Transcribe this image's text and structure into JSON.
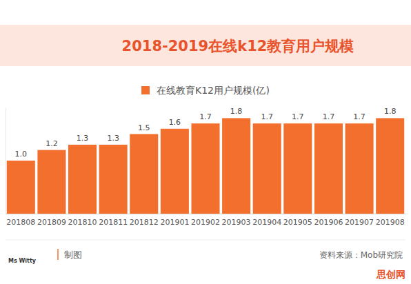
{
  "chart_data": {
    "type": "bar",
    "title": "2018-2019在线k12教育用户规模",
    "categories": [
      "201808",
      "201809",
      "201810",
      "201811",
      "201812",
      "201901",
      "201902",
      "201903",
      "201904",
      "201905",
      "201906",
      "201907",
      "201908"
    ],
    "series": [
      {
        "name": "在线教育K12用户规模(亿)",
        "color": "#f36f2d",
        "values": [
          1.0,
          1.2,
          1.3,
          1.3,
          1.5,
          1.6,
          1.7,
          1.8,
          1.7,
          1.7,
          1.7,
          1.7,
          1.8
        ],
        "value_labels": [
          "1.0",
          "1.2",
          "1.3",
          "1.3",
          "1.5",
          "1.6",
          "1.7",
          "1.8",
          "1.7",
          "1.7",
          "1.7",
          "1.7",
          "1.8"
        ]
      }
    ],
    "ylim": [
      0,
      2
    ],
    "grid": false,
    "legend": "top",
    "data_labels": true,
    "tick_labels": "x",
    "source": "资料来源：Mob研究院",
    "annotations": [
      "Ms Witty",
      "制图",
      "思创网"
    ]
  }
}
